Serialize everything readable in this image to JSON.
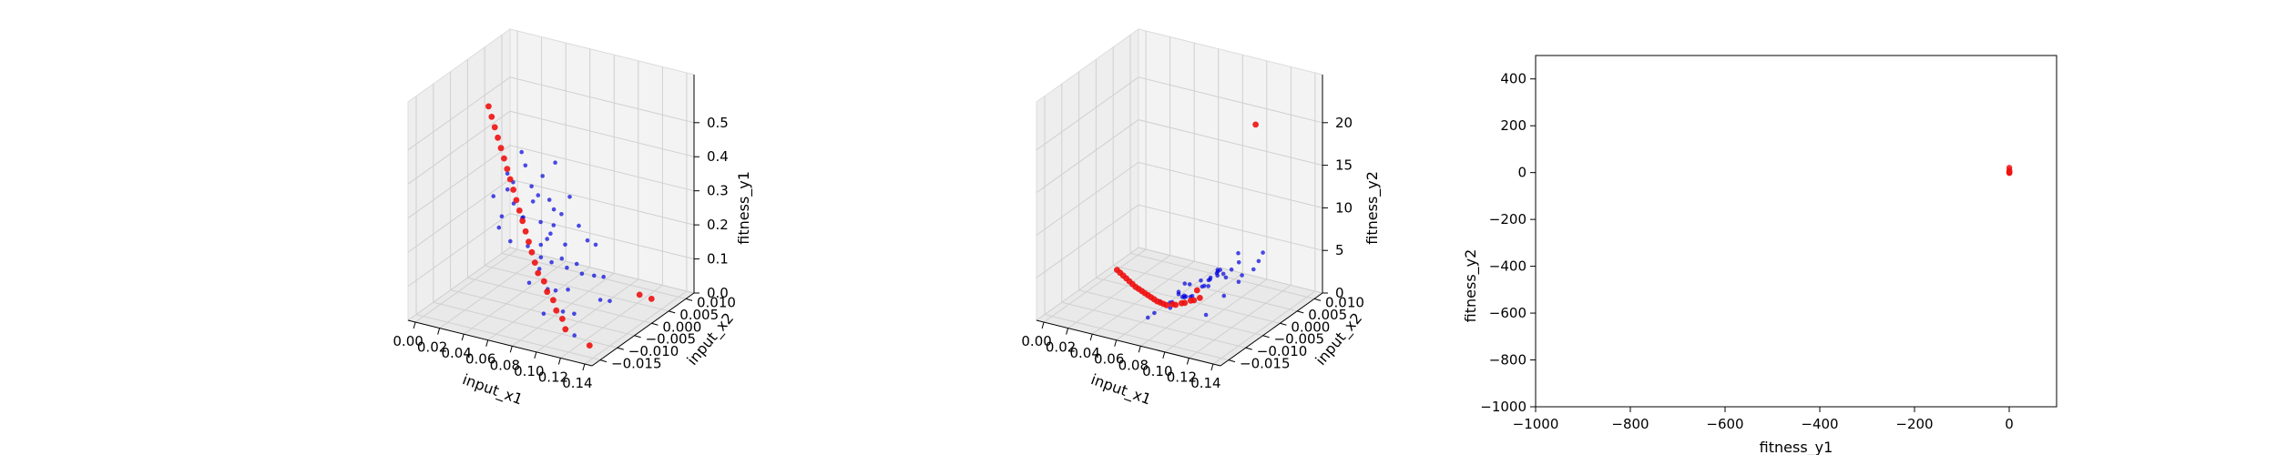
{
  "chart_data": [
    {
      "type": "scatter3d",
      "title": "",
      "xlabel": "input_x1",
      "ylabel": "input_x2",
      "zlabel": "fitness_y1",
      "xticks": [
        "0.00",
        "0.02",
        "0.04",
        "0.06",
        "0.08",
        "0.10",
        "0.12",
        "0.14"
      ],
      "yticks": [
        "0.010",
        "0.005",
        "0.000",
        "−0.005",
        "−0.010",
        "−0.015"
      ],
      "zticks": [
        "0.0",
        "0.1",
        "0.2",
        "0.3",
        "0.4",
        "0.5"
      ],
      "xlim": [
        0.0,
        0.14
      ],
      "ylim": [
        -0.017,
        0.012
      ],
      "zlim": [
        0.0,
        0.5
      ],
      "grid": true,
      "colors": {
        "population": "#0000dd",
        "front": "#ee1111"
      },
      "series": [
        {
          "role": "population",
          "points": [
            [
              0.04,
              0.0,
              0.38
            ],
            [
              0.045,
              0.002,
              0.35
            ],
            [
              0.05,
              -0.002,
              0.4
            ],
            [
              0.055,
              0.004,
              0.33
            ],
            [
              0.06,
              0.0,
              0.36
            ],
            [
              0.05,
              0.006,
              0.3
            ],
            [
              0.065,
              -0.004,
              0.3
            ],
            [
              0.058,
              0.002,
              0.28
            ],
            [
              0.07,
              0.001,
              0.27
            ],
            [
              0.062,
              0.008,
              0.25
            ],
            [
              0.07,
              -0.006,
              0.25
            ],
            [
              0.075,
              0.003,
              0.22
            ],
            [
              0.068,
              -0.002,
              0.2
            ],
            [
              0.08,
              0.005,
              0.2
            ],
            [
              0.078,
              -0.004,
              0.18
            ],
            [
              0.085,
              0.0,
              0.17
            ],
            [
              0.08,
              0.009,
              0.15
            ],
            [
              0.09,
              -0.003,
              0.14
            ],
            [
              0.088,
              0.006,
              0.12
            ],
            [
              0.095,
              0.002,
              0.1
            ],
            [
              0.1,
              -0.008,
              0.08
            ],
            [
              0.092,
              0.009,
              0.07
            ],
            [
              0.105,
              0.004,
              0.05
            ],
            [
              0.11,
              -0.006,
              0.03
            ],
            [
              0.115,
              0.008,
              0.02
            ],
            [
              0.042,
              -0.004,
              0.42
            ],
            [
              0.048,
              0.008,
              0.37
            ],
            [
              0.052,
              -0.007,
              0.34
            ],
            [
              0.057,
              0.005,
              0.4
            ],
            [
              0.063,
              -0.001,
              0.33
            ],
            [
              0.067,
              0.006,
              0.31
            ],
            [
              0.072,
              -0.008,
              0.29
            ],
            [
              0.074,
              0.007,
              0.24
            ],
            [
              0.082,
              -0.007,
              0.22
            ],
            [
              0.086,
              0.008,
              0.19
            ],
            [
              0.091,
              -0.009,
              0.16
            ],
            [
              0.097,
              0.007,
              0.13
            ],
            [
              0.102,
              -0.004,
              0.11
            ],
            [
              0.108,
              0.009,
              0.09
            ],
            [
              0.112,
              -0.002,
              0.06
            ],
            [
              0.06,
              -0.008,
              0.38
            ],
            [
              0.055,
              0.009,
              0.29
            ],
            [
              0.071,
              0.004,
              0.35
            ],
            [
              0.076,
              -0.001,
              0.3
            ],
            [
              0.083,
              0.003,
              0.26
            ],
            [
              0.066,
              -0.005,
              0.22
            ],
            [
              0.079,
              0.001,
              0.16
            ],
            [
              0.094,
              -0.005,
              0.2
            ],
            [
              0.099,
              0.004,
              0.18
            ],
            [
              0.087,
              -0.006,
              0.09
            ]
          ]
        },
        {
          "role": "front",
          "points": [
            [
              0.0,
              -0.01,
              0.48
            ],
            [
              0.005,
              -0.009,
              0.46
            ],
            [
              0.01,
              -0.008,
              0.44
            ],
            [
              0.015,
              -0.007,
              0.42
            ],
            [
              0.02,
              -0.006,
              0.4
            ],
            [
              0.025,
              -0.005,
              0.38
            ],
            [
              0.03,
              -0.004,
              0.36
            ],
            [
              0.035,
              -0.003,
              0.34
            ],
            [
              0.04,
              -0.002,
              0.32
            ],
            [
              0.045,
              -0.001,
              0.3
            ],
            [
              0.05,
              0.0,
              0.28
            ],
            [
              0.055,
              0.001,
              0.26
            ],
            [
              0.06,
              0.002,
              0.24
            ],
            [
              0.065,
              0.003,
              0.22
            ],
            [
              0.07,
              0.004,
              0.2
            ],
            [
              0.075,
              0.005,
              0.18
            ],
            [
              0.08,
              0.006,
              0.16
            ],
            [
              0.085,
              0.006,
              0.14
            ],
            [
              0.09,
              0.007,
              0.12
            ],
            [
              0.095,
              0.007,
              0.1
            ],
            [
              0.1,
              0.008,
              0.08
            ],
            [
              0.105,
              0.008,
              0.06
            ],
            [
              0.11,
              0.009,
              0.04
            ],
            [
              0.12,
              -0.012,
              0.02
            ],
            [
              0.13,
              0.009,
              0.01
            ],
            [
              0.125,
              -0.014,
              0.0
            ]
          ]
        }
      ]
    },
    {
      "type": "scatter3d",
      "title": "",
      "xlabel": "input_x1",
      "ylabel": "input_x2",
      "zlabel": "fitness_y2",
      "xticks": [
        "0.00",
        "0.02",
        "0.04",
        "0.06",
        "0.08",
        "0.10",
        "0.12",
        "0.14"
      ],
      "yticks": [
        "0.010",
        "0.005",
        "0.000",
        "−0.005",
        "−0.010",
        "−0.015"
      ],
      "zticks": [
        "0",
        "5",
        "10",
        "15",
        "20"
      ],
      "xlim": [
        0.0,
        0.14
      ],
      "ylim": [
        -0.017,
        0.012
      ],
      "zlim": [
        0,
        22
      ],
      "grid": true,
      "colors": {
        "population": "#0000dd",
        "front": "#ee1111"
      },
      "series": [
        {
          "role": "population",
          "points": [
            [
              0.08,
              0.0,
              2.5
            ],
            [
              0.085,
              0.002,
              3.0
            ],
            [
              0.09,
              -0.002,
              3.5
            ],
            [
              0.095,
              0.004,
              4.0
            ],
            [
              0.1,
              0.0,
              4.5
            ],
            [
              0.09,
              0.006,
              5.0
            ],
            [
              0.1,
              -0.004,
              5.5
            ],
            [
              0.105,
              0.002,
              6.0
            ],
            [
              0.11,
              0.001,
              6.5
            ],
            [
              0.1,
              0.008,
              7.0
            ],
            [
              0.11,
              -0.006,
              7.5
            ],
            [
              0.115,
              0.003,
              8.0
            ],
            [
              0.108,
              -0.002,
              3.0
            ],
            [
              0.12,
              0.005,
              8.5
            ],
            [
              0.118,
              -0.004,
              5.5
            ],
            [
              0.125,
              0.0,
              6.0
            ],
            [
              0.12,
              0.009,
              4.0
            ],
            [
              0.13,
              -0.003,
              7.0
            ],
            [
              0.07,
              0.006,
              1.5
            ],
            [
              0.075,
              0.002,
              2.0
            ],
            [
              0.065,
              -0.008,
              1.2
            ],
            [
              0.072,
              0.009,
              1.8
            ],
            [
              0.078,
              0.004,
              2.6
            ],
            [
              0.082,
              -0.006,
              2.2
            ],
            [
              0.088,
              0.008,
              3.4
            ],
            [
              0.092,
              -0.004,
              4.2
            ],
            [
              0.098,
              0.008,
              5.2
            ],
            [
              0.102,
              -0.007,
              4.8
            ],
            [
              0.106,
              0.005,
              6.8
            ],
            [
              0.112,
              -0.001,
              5.8
            ],
            [
              0.116,
              0.006,
              7.6
            ],
            [
              0.122,
              -0.008,
              6.4
            ],
            [
              0.124,
              0.007,
              9.0
            ],
            [
              0.128,
              -0.007,
              8.0
            ],
            [
              0.132,
              0.008,
              9.5
            ],
            [
              0.135,
              0.004,
              10.0
            ],
            [
              0.06,
              0.0,
              1.0
            ],
            [
              0.068,
              -0.003,
              1.4
            ],
            [
              0.084,
              0.001,
              2.8
            ],
            [
              0.094,
              0.003,
              3.8
            ]
          ]
        },
        {
          "role": "front",
          "points": [
            [
              0.0,
              -0.01,
              0.0
            ],
            [
              0.005,
              -0.009,
              0.1
            ],
            [
              0.01,
              -0.008,
              0.2
            ],
            [
              0.015,
              -0.007,
              0.3
            ],
            [
              0.02,
              -0.006,
              0.4
            ],
            [
              0.025,
              -0.005,
              0.5
            ],
            [
              0.03,
              -0.004,
              0.6
            ],
            [
              0.035,
              -0.003,
              0.8
            ],
            [
              0.04,
              -0.002,
              1.0
            ],
            [
              0.045,
              -0.001,
              1.2
            ],
            [
              0.05,
              0.0,
              1.4
            ],
            [
              0.055,
              0.001,
              1.6
            ],
            [
              0.06,
              0.002,
              1.8
            ],
            [
              0.065,
              0.003,
              2.0
            ],
            [
              0.07,
              0.004,
              2.3
            ],
            [
              0.075,
              0.005,
              2.6
            ],
            [
              0.08,
              0.006,
              2.9
            ],
            [
              0.085,
              0.006,
              3.2
            ],
            [
              0.09,
              0.007,
              3.6
            ],
            [
              0.095,
              0.007,
              4.0
            ],
            [
              0.1,
              0.008,
              4.5
            ],
            [
              0.105,
              0.008,
              5.0
            ],
            [
              0.11,
              0.009,
              5.5
            ],
            [
              0.115,
              0.009,
              6.0
            ],
            [
              0.12,
              0.012,
              8.0
            ],
            [
              0.1,
              -0.016,
              21.0
            ]
          ]
        }
      ]
    },
    {
      "type": "scatter",
      "title": "",
      "xlabel": "fitness_y1",
      "ylabel": "fitness_y2",
      "xlim": [
        -1000,
        100
      ],
      "ylim": [
        -1000,
        500
      ],
      "xticks": [
        -1000,
        -800,
        -600,
        -400,
        -200,
        0
      ],
      "yticks": [
        -1000,
        -800,
        -600,
        -400,
        -200,
        0,
        200,
        400
      ],
      "xtick_labels": [
        "−1000",
        "−800",
        "−600",
        "−400",
        "−200",
        "0"
      ],
      "ytick_labels": [
        "−1000",
        "−800",
        "−600",
        "−400",
        "−200",
        "0",
        "200",
        "400"
      ],
      "grid": false,
      "colors": {
        "front": "#ee1111"
      },
      "series": [
        {
          "role": "front",
          "points": [
            [
              0.0,
              0.0
            ],
            [
              0.5,
              2.0
            ],
            [
              0.2,
              5.0
            ],
            [
              0.3,
              10.0
            ],
            [
              0.1,
              21.0
            ],
            [
              0.48,
              -2.0
            ],
            [
              0.4,
              1.0
            ]
          ]
        }
      ]
    }
  ]
}
